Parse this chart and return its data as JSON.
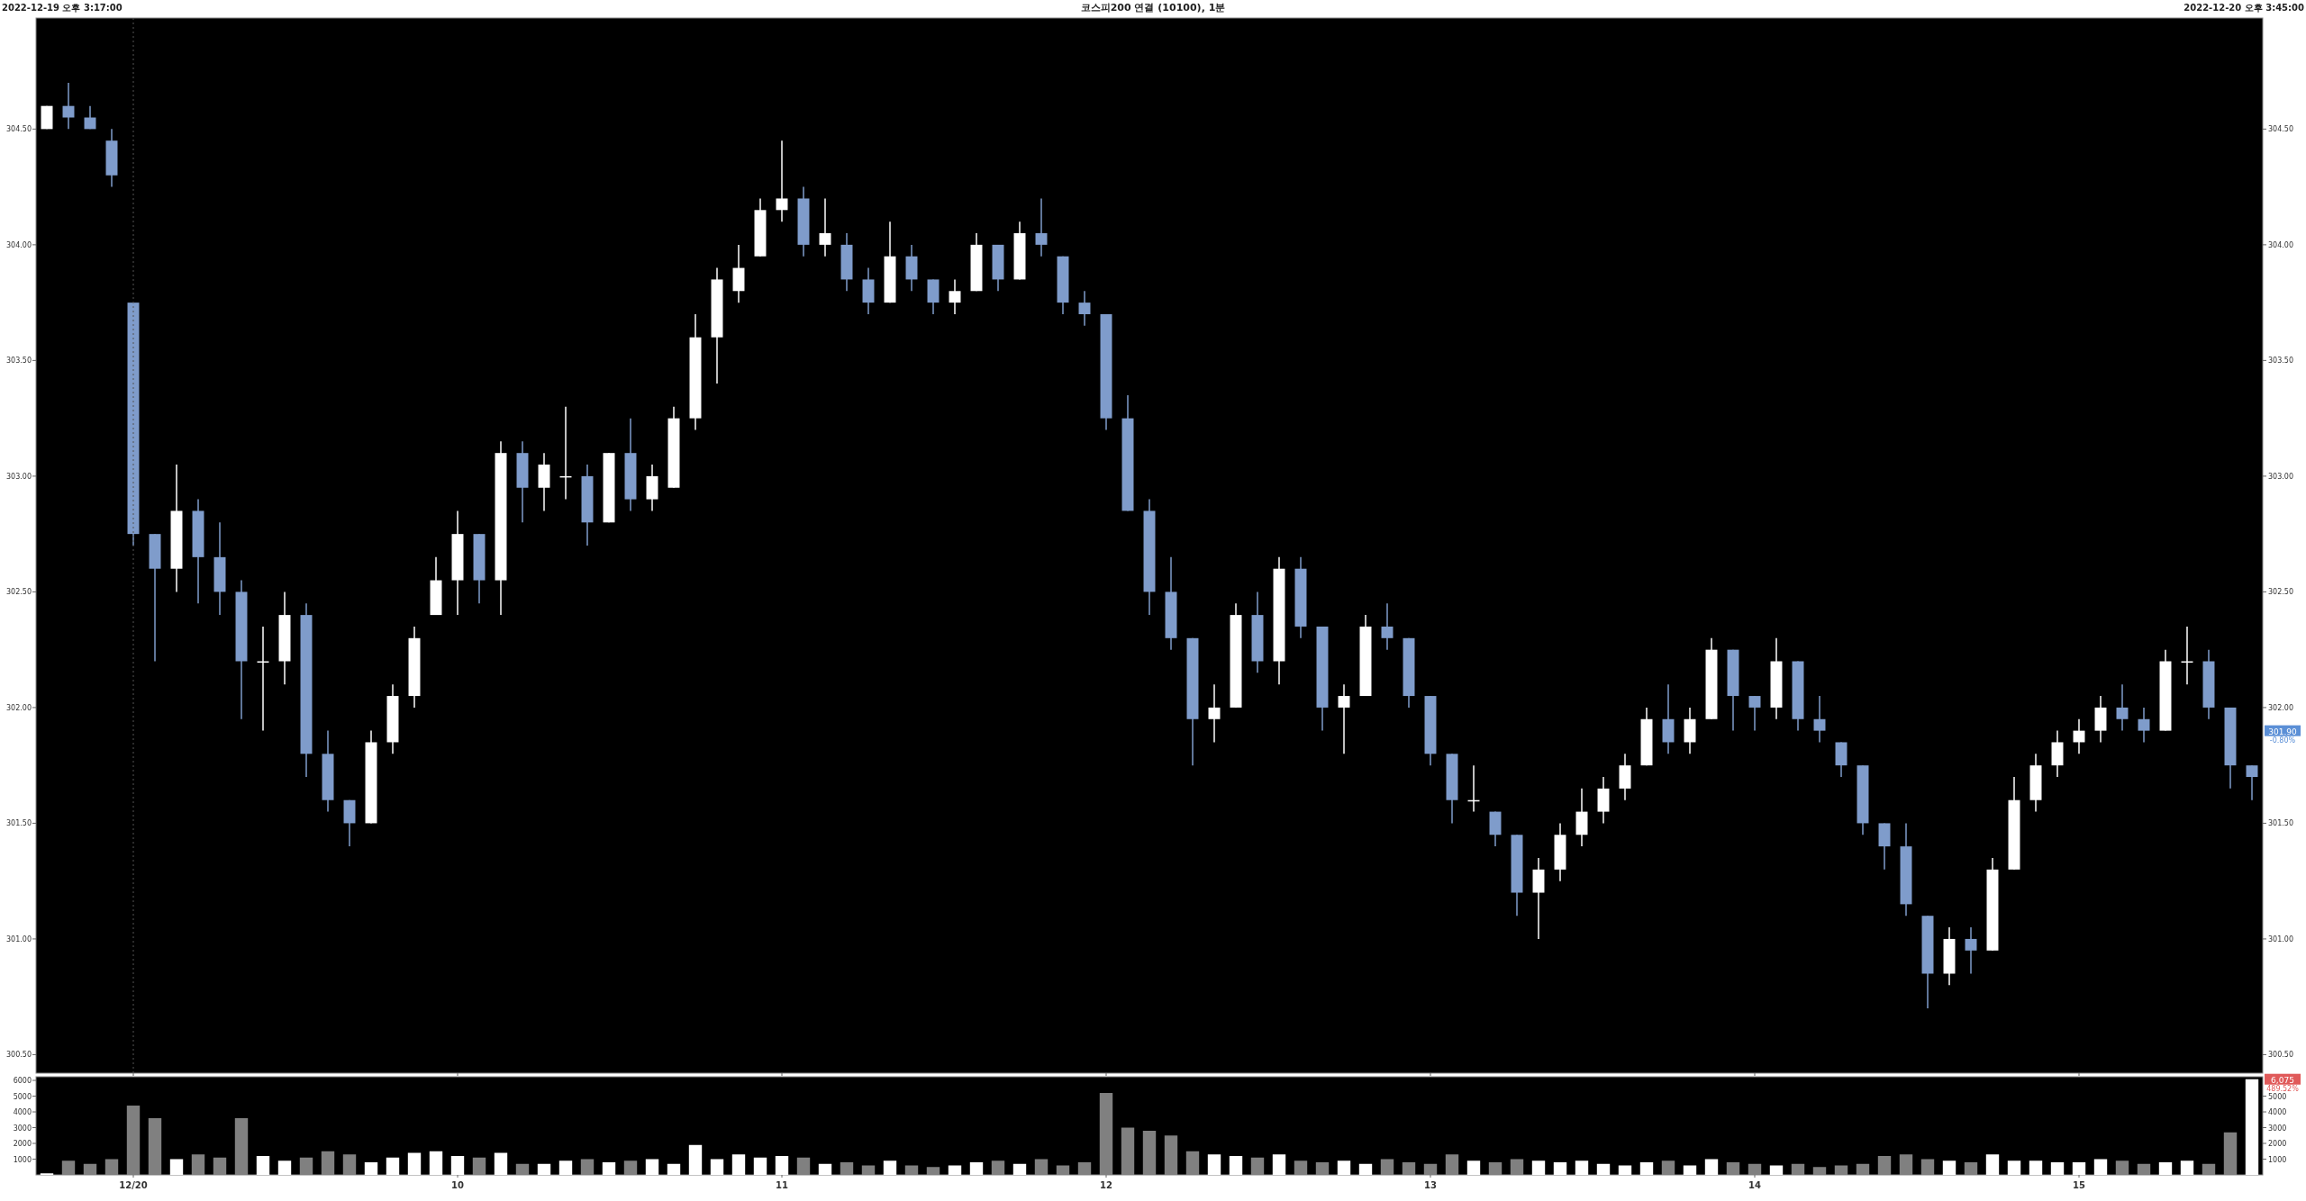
{
  "chart_data": [
    {
      "type": "candlestick",
      "title": "코스피200 연결 (10100), 1분",
      "annotations": [
        "2022-12-19 오후 3:17:00",
        "2022-12-20 오후 3:45:00",
        {
          "text": "301.90",
          "y": 301.9
        },
        "-0.80%"
      ],
      "categories": [
        null,
        null,
        null,
        null,
        "12/20",
        null,
        null,
        null,
        null,
        null,
        null,
        null,
        null,
        null,
        null,
        null,
        null,
        null,
        null,
        "10",
        null,
        null,
        null,
        null,
        null,
        null,
        null,
        null,
        null,
        null,
        null,
        null,
        null,
        null,
        "11",
        null,
        null,
        null,
        null,
        null,
        null,
        null,
        null,
        null,
        null,
        null,
        null,
        null,
        null,
        "12",
        null,
        null,
        null,
        null,
        null,
        null,
        null,
        null,
        null,
        null,
        null,
        null,
        null,
        null,
        "13",
        null,
        null,
        null,
        null,
        null,
        null,
        null,
        null,
        null,
        null,
        null,
        null,
        null,
        null,
        "14",
        null,
        null,
        null,
        null,
        null,
        null,
        null,
        null,
        null,
        null,
        null,
        null,
        null,
        null,
        "15",
        null,
        null,
        null,
        null,
        null,
        null,
        null,
        null
      ],
      "ohlc": [
        [
          304.5,
          304.6,
          304.5,
          304.6
        ],
        [
          304.6,
          304.7,
          304.5,
          304.55
        ],
        [
          304.55,
          304.6,
          304.5,
          304.5
        ],
        [
          304.45,
          304.5,
          304.25,
          304.3
        ],
        [
          303.75,
          303.75,
          302.7,
          302.75
        ],
        [
          302.75,
          302.75,
          302.2,
          302.6
        ],
        [
          302.6,
          303.05,
          302.5,
          302.85
        ],
        [
          302.85,
          302.9,
          302.45,
          302.65
        ],
        [
          302.65,
          302.8,
          302.4,
          302.5
        ],
        [
          302.5,
          302.55,
          301.95,
          302.2
        ],
        [
          302.2,
          302.35,
          301.9,
          302.2
        ],
        [
          302.2,
          302.5,
          302.1,
          302.4
        ],
        [
          302.4,
          302.45,
          301.7,
          301.8
        ],
        [
          301.8,
          301.9,
          301.55,
          301.6
        ],
        [
          301.6,
          301.6,
          301.4,
          301.5
        ],
        [
          301.5,
          301.9,
          301.5,
          301.85
        ],
        [
          301.85,
          302.1,
          301.8,
          302.05
        ],
        [
          302.05,
          302.35,
          302.0,
          302.3
        ],
        [
          302.4,
          302.65,
          302.4,
          302.55
        ],
        [
          302.55,
          302.85,
          302.4,
          302.75
        ],
        [
          302.75,
          302.75,
          302.45,
          302.55
        ],
        [
          302.55,
          303.15,
          302.4,
          303.1
        ],
        [
          303.1,
          303.15,
          302.8,
          302.95
        ],
        [
          302.95,
          303.1,
          302.85,
          303.05
        ],
        [
          303.0,
          303.3,
          302.9,
          303.0
        ],
        [
          303.0,
          303.05,
          302.7,
          302.8
        ],
        [
          302.8,
          303.1,
          302.8,
          303.1
        ],
        [
          303.1,
          303.25,
          302.85,
          302.9
        ],
        [
          302.9,
          303.05,
          302.85,
          303.0
        ],
        [
          302.95,
          303.3,
          302.95,
          303.25
        ],
        [
          303.25,
          303.7,
          303.2,
          303.6
        ],
        [
          303.6,
          303.9,
          303.4,
          303.85
        ],
        [
          303.8,
          304.0,
          303.75,
          303.9
        ],
        [
          303.95,
          304.2,
          303.95,
          304.15
        ],
        [
          304.15,
          304.45,
          304.1,
          304.2
        ],
        [
          304.2,
          304.25,
          303.95,
          304.0
        ],
        [
          304.0,
          304.2,
          303.95,
          304.05
        ],
        [
          304.0,
          304.05,
          303.8,
          303.85
        ],
        [
          303.85,
          303.9,
          303.7,
          303.75
        ],
        [
          303.75,
          304.1,
          303.75,
          303.95
        ],
        [
          303.95,
          304.0,
          303.8,
          303.85
        ],
        [
          303.85,
          303.85,
          303.7,
          303.75
        ],
        [
          303.75,
          303.85,
          303.7,
          303.8
        ],
        [
          303.8,
          304.05,
          303.8,
          304.0
        ],
        [
          304.0,
          304.0,
          303.8,
          303.85
        ],
        [
          303.85,
          304.1,
          303.85,
          304.05
        ],
        [
          304.05,
          304.2,
          303.95,
          304.0
        ],
        [
          303.95,
          303.95,
          303.7,
          303.75
        ],
        [
          303.75,
          303.8,
          303.65,
          303.7
        ],
        [
          303.7,
          303.7,
          303.2,
          303.25
        ],
        [
          303.25,
          303.35,
          302.85,
          302.85
        ],
        [
          302.85,
          302.9,
          302.4,
          302.5
        ],
        [
          302.5,
          302.65,
          302.25,
          302.3
        ],
        [
          302.3,
          302.3,
          301.75,
          301.95
        ],
        [
          301.95,
          302.1,
          301.85,
          302.0
        ],
        [
          302.0,
          302.45,
          302.0,
          302.4
        ],
        [
          302.4,
          302.5,
          302.15,
          302.2
        ],
        [
          302.2,
          302.65,
          302.1,
          302.6
        ],
        [
          302.6,
          302.65,
          302.3,
          302.35
        ],
        [
          302.35,
          302.35,
          301.9,
          302.0
        ],
        [
          302.0,
          302.1,
          301.8,
          302.05
        ],
        [
          302.05,
          302.4,
          302.05,
          302.35
        ],
        [
          302.35,
          302.45,
          302.25,
          302.3
        ],
        [
          302.3,
          302.3,
          302.0,
          302.05
        ],
        [
          302.05,
          302.05,
          301.75,
          301.8
        ],
        [
          301.8,
          301.8,
          301.5,
          301.6
        ],
        [
          301.6,
          301.75,
          301.55,
          301.6
        ],
        [
          301.55,
          301.55,
          301.4,
          301.45
        ],
        [
          301.45,
          301.45,
          301.1,
          301.2
        ],
        [
          301.2,
          301.35,
          301.0,
          301.3
        ],
        [
          301.3,
          301.5,
          301.25,
          301.45
        ],
        [
          301.45,
          301.65,
          301.4,
          301.55
        ],
        [
          301.55,
          301.7,
          301.5,
          301.65
        ],
        [
          301.65,
          301.8,
          301.6,
          301.75
        ],
        [
          301.75,
          302.0,
          301.75,
          301.95
        ],
        [
          301.95,
          302.1,
          301.8,
          301.85
        ],
        [
          301.85,
          302.0,
          301.8,
          301.95
        ],
        [
          301.95,
          302.3,
          301.95,
          302.25
        ],
        [
          302.25,
          302.25,
          301.9,
          302.05
        ],
        [
          302.05,
          302.05,
          301.9,
          302.0
        ],
        [
          302.0,
          302.3,
          301.95,
          302.2
        ],
        [
          302.2,
          302.2,
          301.9,
          301.95
        ],
        [
          301.95,
          302.05,
          301.85,
          301.9
        ],
        [
          301.85,
          301.85,
          301.7,
          301.75
        ],
        [
          301.75,
          301.75,
          301.45,
          301.5
        ],
        [
          301.5,
          301.5,
          301.3,
          301.4
        ],
        [
          301.4,
          301.5,
          301.1,
          301.15
        ],
        [
          301.1,
          301.1,
          300.7,
          300.85
        ],
        [
          300.85,
          301.05,
          300.8,
          301.0
        ],
        [
          301.0,
          301.05,
          300.85,
          300.95
        ],
        [
          300.95,
          301.35,
          300.95,
          301.3
        ],
        [
          301.3,
          301.7,
          301.3,
          301.6
        ],
        [
          301.6,
          301.8,
          301.55,
          301.75
        ],
        [
          301.75,
          301.9,
          301.7,
          301.85
        ],
        [
          301.85,
          301.95,
          301.8,
          301.9
        ],
        [
          301.9,
          302.05,
          301.85,
          302.0
        ],
        [
          302.0,
          302.1,
          301.9,
          301.95
        ],
        [
          301.95,
          302.0,
          301.85,
          301.9
        ],
        [
          301.9,
          302.25,
          301.9,
          302.2
        ],
        [
          302.2,
          302.35,
          302.1,
          302.2
        ],
        [
          302.2,
          302.25,
          301.95,
          302.0
        ],
        [
          302.0,
          302.0,
          301.65,
          301.75
        ],
        [
          301.75,
          301.75,
          301.6,
          301.7
        ]
      ],
      "colors": [
        "#ffffff",
        "#7f9ccb",
        "#7f9ccb",
        "#7f9ccb",
        "#7f9ccb",
        "#7f9ccb",
        "#ffffff",
        "#7f9ccb",
        "#7f9ccb",
        "#7f9ccb",
        "#ffffff",
        "#ffffff",
        "#7f9ccb",
        "#7f9ccb",
        "#7f9ccb",
        "#ffffff",
        "#ffffff",
        "#ffffff",
        "#ffffff",
        "#ffffff",
        "#7f9ccb",
        "#ffffff",
        "#7f9ccb",
        "#ffffff",
        "#ffffff",
        "#7f9ccb",
        "#ffffff",
        "#7f9ccb",
        "#ffffff",
        "#ffffff",
        "#ffffff",
        "#ffffff",
        "#ffffff",
        "#ffffff",
        "#ffffff",
        "#7f9ccb",
        "#ffffff",
        "#7f9ccb",
        "#7f9ccb",
        "#ffffff",
        "#7f9ccb",
        "#7f9ccb",
        "#ffffff",
        "#ffffff",
        "#7f9ccb",
        "#ffffff",
        "#7f9ccb",
        "#7f9ccb",
        "#7f9ccb",
        "#7f9ccb",
        "#7f9ccb",
        "#7f9ccb",
        "#7f9ccb",
        "#7f9ccb",
        "#ffffff",
        "#ffffff",
        "#7f9ccb",
        "#ffffff",
        "#7f9ccb",
        "#7f9ccb",
        "#ffffff",
        "#ffffff",
        "#7f9ccb",
        "#7f9ccb",
        "#7f9ccb",
        "#7f9ccb",
        "#ffffff",
        "#7f9ccb",
        "#7f9ccb",
        "#ffffff",
        "#ffffff",
        "#ffffff",
        "#ffffff",
        "#ffffff",
        "#ffffff",
        "#7f9ccb",
        "#ffffff",
        "#ffffff",
        "#7f9ccb",
        "#7f9ccb",
        "#ffffff",
        "#7f9ccb",
        "#7f9ccb",
        "#7f9ccb",
        "#7f9ccb",
        "#7f9ccb",
        "#7f9ccb",
        "#7f9ccb",
        "#ffffff",
        "#7f9ccb",
        "#ffffff",
        "#ffffff",
        "#ffffff",
        "#ffffff",
        "#ffffff",
        "#ffffff",
        "#7f9ccb",
        "#7f9ccb",
        "#ffffff",
        "#ffffff",
        "#7f9ccb",
        "#7f9ccb",
        "#7f9ccb"
      ],
      "ylim": [
        300.42,
        304.98
      ],
      "yticks": [
        {
          "value": 300.5,
          "label": "300.50"
        },
        {
          "value": 301,
          "label": "301.00"
        },
        {
          "value": 301.5,
          "label": "301.50"
        },
        {
          "value": 302,
          "label": "302.00"
        },
        {
          "value": 302.5,
          "label": "302.50"
        },
        {
          "value": 303,
          "label": "303.00"
        },
        {
          "value": 303.5,
          "label": "303.50"
        },
        {
          "value": 304,
          "label": "304.00"
        },
        {
          "value": 304.5,
          "label": "304.50"
        }
      ],
      "y2lim": [
        300.42,
        304.98
      ],
      "y2ticks": [
        {
          "value": 300.5,
          "label": "300.50"
        },
        {
          "value": 301,
          "label": "301.00"
        },
        {
          "value": 301.5,
          "label": "301.50"
        },
        {
          "value": 302,
          "label": "302.00"
        },
        {
          "value": 302.5,
          "label": "302.50"
        },
        {
          "value": 303,
          "label": "303.00"
        },
        {
          "value": 303.5,
          "label": "303.50"
        },
        {
          "value": 304,
          "label": "304.00"
        },
        {
          "value": 304.5,
          "label": "304.50"
        }
      ],
      "tick_labels": "y",
      "ref_lines": [
        {
          "axis": "x",
          "value": "12/20",
          "line_style": "dotted",
          "color": "#555555"
        }
      ]
    },
    {
      "type": "bar",
      "annotations": [
        {
          "text": "6,075",
          "y": 6075
        },
        "489.52%"
      ],
      "categories": [
        null,
        null,
        null,
        null,
        "12/20",
        null,
        null,
        null,
        null,
        null,
        null,
        null,
        null,
        null,
        null,
        null,
        null,
        null,
        null,
        "10",
        null,
        null,
        null,
        null,
        null,
        null,
        null,
        null,
        null,
        null,
        null,
        null,
        null,
        null,
        "11",
        null,
        null,
        null,
        null,
        null,
        null,
        null,
        null,
        null,
        null,
        null,
        null,
        null,
        null,
        "12",
        null,
        null,
        null,
        null,
        null,
        null,
        null,
        null,
        null,
        null,
        null,
        null,
        null,
        null,
        "13",
        null,
        null,
        null,
        null,
        null,
        null,
        null,
        null,
        null,
        null,
        null,
        null,
        null,
        null,
        "14",
        null,
        null,
        null,
        null,
        null,
        null,
        null,
        null,
        null,
        null,
        null,
        null,
        null,
        null,
        "15",
        null,
        null,
        null,
        null,
        null,
        null,
        null,
        null
      ],
      "values": [
        100,
        900,
        700,
        1000,
        4400,
        3600,
        1000,
        1300,
        1100,
        3600,
        1200,
        900,
        1100,
        1500,
        1300,
        800,
        1100,
        1400,
        1500,
        1200,
        1100,
        1400,
        700,
        700,
        900,
        1000,
        800,
        900,
        1000,
        700,
        1900,
        1000,
        1300,
        1100,
        1200,
        1100,
        700,
        800,
        600,
        900,
        600,
        500,
        600,
        800,
        900,
        700,
        1000,
        600,
        800,
        5200,
        3000,
        2800,
        2500,
        1500,
        1300,
        1200,
        1100,
        1300,
        900,
        800,
        900,
        700,
        1000,
        800,
        700,
        1300,
        900,
        800,
        1000,
        900,
        800,
        900,
        700,
        600,
        800,
        900,
        600,
        1000,
        800,
        700,
        600,
        700,
        500,
        600,
        700,
        1200,
        1300,
        1000,
        900,
        800,
        1300,
        900,
        900,
        800,
        800,
        1000,
        900,
        700,
        800,
        900,
        700,
        2700,
        6075
      ],
      "colors": [
        "#ffffff",
        "#808080",
        "#808080",
        "#808080",
        "#808080",
        "#808080",
        "#ffffff",
        "#808080",
        "#808080",
        "#808080",
        "#ffffff",
        "#ffffff",
        "#808080",
        "#808080",
        "#808080",
        "#ffffff",
        "#ffffff",
        "#ffffff",
        "#ffffff",
        "#ffffff",
        "#808080",
        "#ffffff",
        "#808080",
        "#ffffff",
        "#ffffff",
        "#808080",
        "#ffffff",
        "#808080",
        "#ffffff",
        "#ffffff",
        "#ffffff",
        "#ffffff",
        "#ffffff",
        "#ffffff",
        "#ffffff",
        "#808080",
        "#ffffff",
        "#808080",
        "#808080",
        "#ffffff",
        "#808080",
        "#808080",
        "#ffffff",
        "#ffffff",
        "#808080",
        "#ffffff",
        "#808080",
        "#808080",
        "#808080",
        "#808080",
        "#808080",
        "#808080",
        "#808080",
        "#808080",
        "#ffffff",
        "#ffffff",
        "#808080",
        "#ffffff",
        "#808080",
        "#808080",
        "#ffffff",
        "#ffffff",
        "#808080",
        "#808080",
        "#808080",
        "#808080",
        "#ffffff",
        "#808080",
        "#808080",
        "#ffffff",
        "#ffffff",
        "#ffffff",
        "#ffffff",
        "#ffffff",
        "#ffffff",
        "#808080",
        "#ffffff",
        "#ffffff",
        "#808080",
        "#808080",
        "#ffffff",
        "#808080",
        "#808080",
        "#808080",
        "#808080",
        "#808080",
        "#808080",
        "#808080",
        "#ffffff",
        "#808080",
        "#ffffff",
        "#ffffff",
        "#ffffff",
        "#ffffff",
        "#ffffff",
        "#ffffff",
        "#808080",
        "#808080",
        "#ffffff",
        "#ffffff",
        "#808080",
        "#808080",
        "#ffffff"
      ],
      "ylim": [
        0,
        6230
      ],
      "yticks": [
        1000,
        2000,
        3000,
        4000,
        5000,
        6000
      ],
      "y2lim": [
        0,
        6230
      ],
      "y2ticks": [
        1000,
        2000,
        3000,
        4000,
        5000
      ]
    }
  ]
}
